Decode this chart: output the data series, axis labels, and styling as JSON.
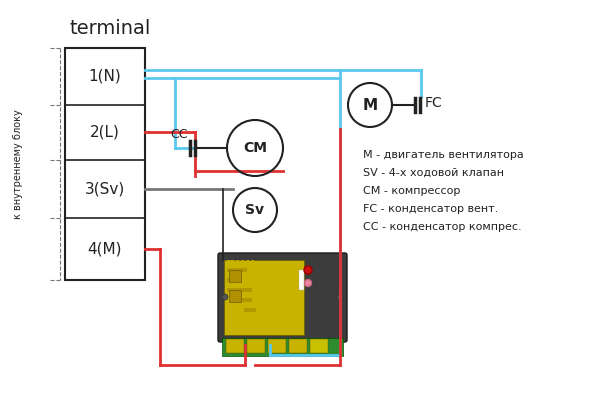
{
  "title": "terminal",
  "ylabel_rotated": "к внутреннему блоку",
  "terminal_labels": [
    "1(N)",
    "2(L)",
    "3(Sv)",
    "4(M)"
  ],
  "legend_lines": [
    "M - двигатель вентилятора",
    "SV - 4-х ходовой клапан",
    "CM - компрессор",
    "FC - конденсатор вент.",
    "CC - конденсатор компрес."
  ],
  "blue": "#5bc8f0",
  "red": "#e03030",
  "black": "#222222",
  "gray": "#777777",
  "bg": "#ffffff",
  "device_bg": "#3c3c3c",
  "device_green": "#2e8b2e",
  "device_yellow": "#c8b400",
  "device_red": "#cc1111",
  "device_pink": "#e888a0"
}
